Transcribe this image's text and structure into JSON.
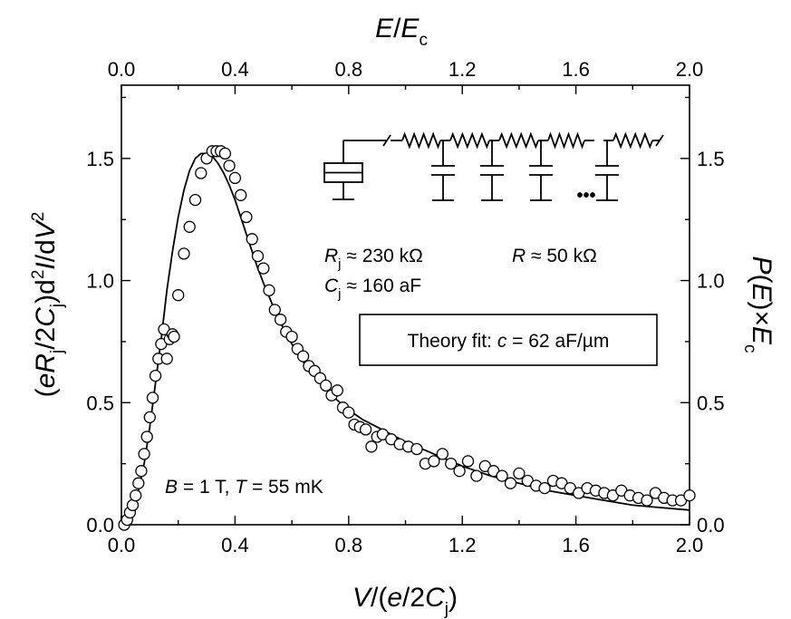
{
  "chart_data": {
    "type": "scatter",
    "axes": {
      "bottom": {
        "range": [
          0.0,
          2.0
        ],
        "ticks": [
          "0.0",
          "0.4",
          "0.8",
          "1.2",
          "1.6",
          "2.0"
        ]
      },
      "top": {
        "range": [
          0.0,
          2.0
        ],
        "ticks": [
          "0.0",
          "0.4",
          "0.8",
          "1.2",
          "1.6",
          "2.0"
        ]
      },
      "left": {
        "range": [
          0.0,
          1.8
        ],
        "ticks": [
          "0.0",
          "0.5",
          "1.0",
          "1.5"
        ]
      },
      "right": {
        "range": [
          0.0,
          1.8
        ],
        "ticks": [
          "0.0",
          "0.5",
          "1.0",
          "1.5"
        ]
      }
    },
    "series": [
      {
        "kind": "scatter",
        "marker": "open-circle",
        "x": [
          0.01,
          0.02,
          0.03,
          0.04,
          0.05,
          0.06,
          0.07,
          0.08,
          0.09,
          0.1,
          0.11,
          0.12,
          0.13,
          0.14,
          0.15,
          0.16,
          0.17,
          0.18,
          0.185,
          0.2,
          0.22,
          0.24,
          0.26,
          0.28,
          0.3,
          0.32,
          0.335,
          0.35,
          0.365,
          0.38,
          0.4,
          0.42,
          0.44,
          0.46,
          0.48,
          0.5,
          0.52,
          0.54,
          0.56,
          0.58,
          0.6,
          0.62,
          0.64,
          0.66,
          0.68,
          0.7,
          0.72,
          0.74,
          0.76,
          0.78,
          0.8,
          0.82,
          0.84,
          0.86,
          0.88,
          0.9,
          0.92,
          0.95,
          0.98,
          1.01,
          1.04,
          1.07,
          1.1,
          1.13,
          1.16,
          1.19,
          1.22,
          1.25,
          1.28,
          1.31,
          1.34,
          1.37,
          1.4,
          1.43,
          1.46,
          1.49,
          1.52,
          1.55,
          1.58,
          1.61,
          1.64,
          1.67,
          1.7,
          1.73,
          1.76,
          1.79,
          1.82,
          1.85,
          1.88,
          1.91,
          1.94,
          1.97,
          2.0
        ],
        "y": [
          0.0,
          0.02,
          0.05,
          0.08,
          0.12,
          0.17,
          0.22,
          0.29,
          0.36,
          0.44,
          0.52,
          0.61,
          0.68,
          0.74,
          0.8,
          0.68,
          0.76,
          0.78,
          0.77,
          0.94,
          1.11,
          1.22,
          1.33,
          1.44,
          1.5,
          1.53,
          1.53,
          1.53,
          1.52,
          1.47,
          1.42,
          1.35,
          1.26,
          1.17,
          1.1,
          1.05,
          0.96,
          0.88,
          0.84,
          0.79,
          0.77,
          0.72,
          0.69,
          0.65,
          0.63,
          0.6,
          0.57,
          0.53,
          0.55,
          0.48,
          0.46,
          0.41,
          0.4,
          0.39,
          0.32,
          0.36,
          0.37,
          0.35,
          0.33,
          0.32,
          0.31,
          0.25,
          0.26,
          0.29,
          0.25,
          0.22,
          0.26,
          0.2,
          0.24,
          0.22,
          0.2,
          0.17,
          0.21,
          0.18,
          0.16,
          0.15,
          0.18,
          0.17,
          0.15,
          0.13,
          0.15,
          0.14,
          0.13,
          0.12,
          0.14,
          0.12,
          0.11,
          0.1,
          0.13,
          0.11,
          0.1,
          0.1,
          0.12
        ]
      },
      {
        "kind": "line",
        "x": [
          0.0,
          0.02,
          0.04,
          0.06,
          0.08,
          0.1,
          0.12,
          0.14,
          0.16,
          0.18,
          0.2,
          0.22,
          0.24,
          0.26,
          0.28,
          0.3,
          0.32,
          0.34,
          0.36,
          0.38,
          0.4,
          0.42,
          0.44,
          0.46,
          0.48,
          0.5,
          0.55,
          0.6,
          0.65,
          0.7,
          0.75,
          0.8,
          0.85,
          0.9,
          0.95,
          1.0,
          1.1,
          1.2,
          1.3,
          1.4,
          1.5,
          1.6,
          1.7,
          1.8,
          1.9,
          2.0
        ],
        "y": [
          0.0,
          0.02,
          0.06,
          0.14,
          0.25,
          0.4,
          0.58,
          0.76,
          0.96,
          1.12,
          1.26,
          1.37,
          1.45,
          1.5,
          1.52,
          1.52,
          1.51,
          1.48,
          1.44,
          1.39,
          1.33,
          1.26,
          1.19,
          1.12,
          1.05,
          0.99,
          0.85,
          0.74,
          0.65,
          0.58,
          0.52,
          0.47,
          0.43,
          0.4,
          0.37,
          0.34,
          0.29,
          0.24,
          0.2,
          0.17,
          0.14,
          0.12,
          0.1,
          0.08,
          0.07,
          0.06
        ]
      }
    ],
    "annotations": {
      "conditions": {
        "b_var": "B",
        "b_val": "= 1 T,",
        "t_var": "T",
        "t_val": "= 55 mK"
      },
      "rj": {
        "var": "R",
        "sub": "j",
        "val": "≈ 230 kΩ"
      },
      "cj": {
        "var": "C",
        "sub": "j",
        "val": "≈ 160 aF"
      },
      "r": {
        "var": "R",
        "val": "≈ 50 kΩ"
      },
      "fit": {
        "prefix": "Theory fit: ",
        "var": "c",
        "val": " = 62 aF/µm"
      }
    },
    "circuit_ellipsis": "•••"
  }
}
